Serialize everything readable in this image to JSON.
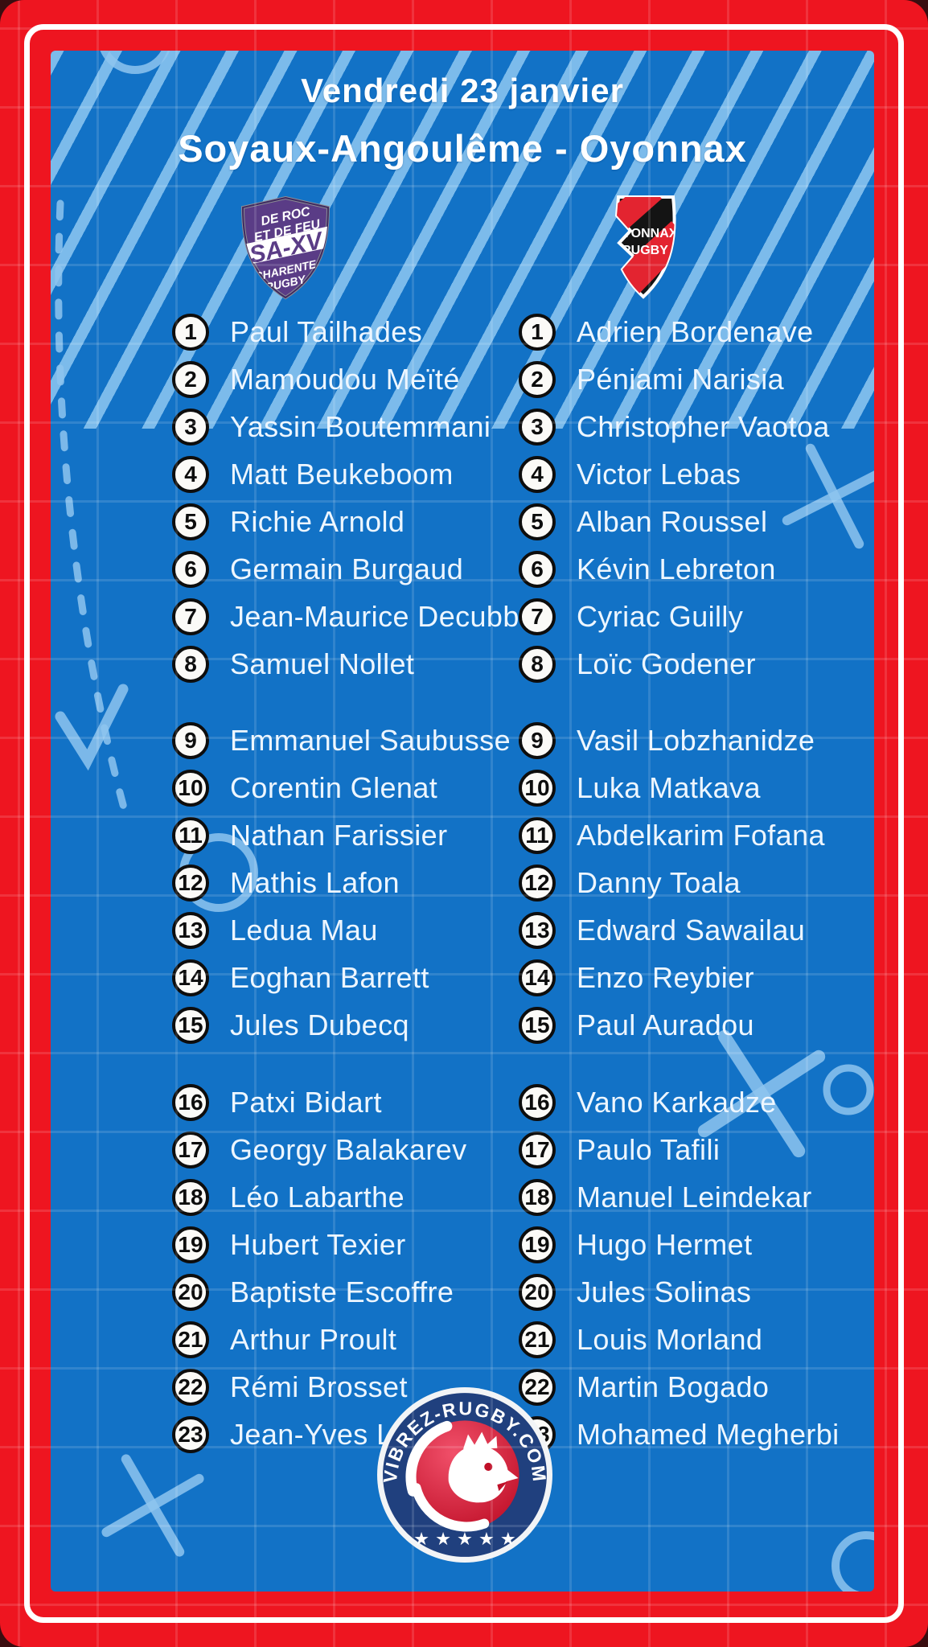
{
  "header": {
    "date": "Vendredi 23 janvier",
    "fixture": "Soyaux-Angoulême - Oyonnax"
  },
  "teams": {
    "home": {
      "name": "Soyaux-Angoulême",
      "logo": {
        "motto_line1": "DE ROC",
        "motto_line2": "ET DE FEU",
        "acronym": "SA-XV",
        "sub_line1": "CHARENTE",
        "sub_line2": "RUGBY"
      },
      "players": [
        {
          "number": 1,
          "name": "Paul Tailhades"
        },
        {
          "number": 2,
          "name": "Mamoudou Meïté"
        },
        {
          "number": 3,
          "name": "Yassin Boutemmani"
        },
        {
          "number": 4,
          "name": "Matt Beukeboom"
        },
        {
          "number": 5,
          "name": "Richie Arnold"
        },
        {
          "number": 6,
          "name": "Germain Burgaud"
        },
        {
          "number": 7,
          "name": "Jean-Maurice Decubber"
        },
        {
          "number": 8,
          "name": "Samuel Nollet"
        },
        {
          "number": 9,
          "name": "Emmanuel Saubusse"
        },
        {
          "number": 10,
          "name": "Corentin Glenat"
        },
        {
          "number": 11,
          "name": "Nathan Farissier"
        },
        {
          "number": 12,
          "name": "Mathis Lafon"
        },
        {
          "number": 13,
          "name": "Ledua Mau"
        },
        {
          "number": 14,
          "name": "Eoghan Barrett"
        },
        {
          "number": 15,
          "name": "Jules Dubecq"
        },
        {
          "number": 16,
          "name": "Patxi Bidart"
        },
        {
          "number": 17,
          "name": "Georgy Balakarev"
        },
        {
          "number": 18,
          "name": "Léo Labarthe"
        },
        {
          "number": 19,
          "name": "Hubert Texier"
        },
        {
          "number": 20,
          "name": "Baptiste Escoffre"
        },
        {
          "number": 21,
          "name": "Arthur Proult"
        },
        {
          "number": 22,
          "name": "Rémi Brosset"
        },
        {
          "number": 23,
          "name": "Jean-Yves Liufau"
        }
      ]
    },
    "away": {
      "name": "Oyonnax",
      "logo": {
        "line1": "OYONNAX",
        "line2": "RUGBY"
      },
      "players": [
        {
          "number": 1,
          "name": "Adrien Bordenave"
        },
        {
          "number": 2,
          "name": "Péniami Narisia"
        },
        {
          "number": 3,
          "name": "Christopher Vaotoa"
        },
        {
          "number": 4,
          "name": "Victor Lebas"
        },
        {
          "number": 5,
          "name": "Alban Roussel"
        },
        {
          "number": 6,
          "name": "Kévin Lebreton"
        },
        {
          "number": 7,
          "name": "Cyriac Guilly"
        },
        {
          "number": 8,
          "name": "Loïc Godener"
        },
        {
          "number": 9,
          "name": "Vasil Lobzhanidze"
        },
        {
          "number": 10,
          "name": "Luka Matkava"
        },
        {
          "number": 11,
          "name": "Abdelkarim Fofana"
        },
        {
          "number": 12,
          "name": "Danny Toala"
        },
        {
          "number": 13,
          "name": "Edward Sawailau"
        },
        {
          "number": 14,
          "name": "Enzo Reybier"
        },
        {
          "number": 15,
          "name": "Paul Auradou"
        },
        {
          "number": 16,
          "name": "Vano Karkadze"
        },
        {
          "number": 17,
          "name": "Paulo Tafili"
        },
        {
          "number": 18,
          "name": "Manuel Leindekar"
        },
        {
          "number": 19,
          "name": "Hugo Hermet"
        },
        {
          "number": 20,
          "name": "Jules Solinas"
        },
        {
          "number": 21,
          "name": "Louis Morland"
        },
        {
          "number": 22,
          "name": "Martin Bogado"
        },
        {
          "number": 23,
          "name": "Mohamed Megherbi"
        }
      ]
    }
  },
  "footer_badge": {
    "site": "VIBREZ-RUGBY.COM",
    "stars": "★ ★ ★ ★ ★"
  },
  "colors": {
    "frame_red": "#ee1520",
    "panel_blue": "#1272c6",
    "doodle_blue": "#8ec4ee",
    "name_text": "#edf6ff",
    "home_purple": "#5a3c86",
    "away_black": "#141414",
    "away_red": "#e32430",
    "badge_navy": "#20407e",
    "badge_red": "#d41a33"
  }
}
